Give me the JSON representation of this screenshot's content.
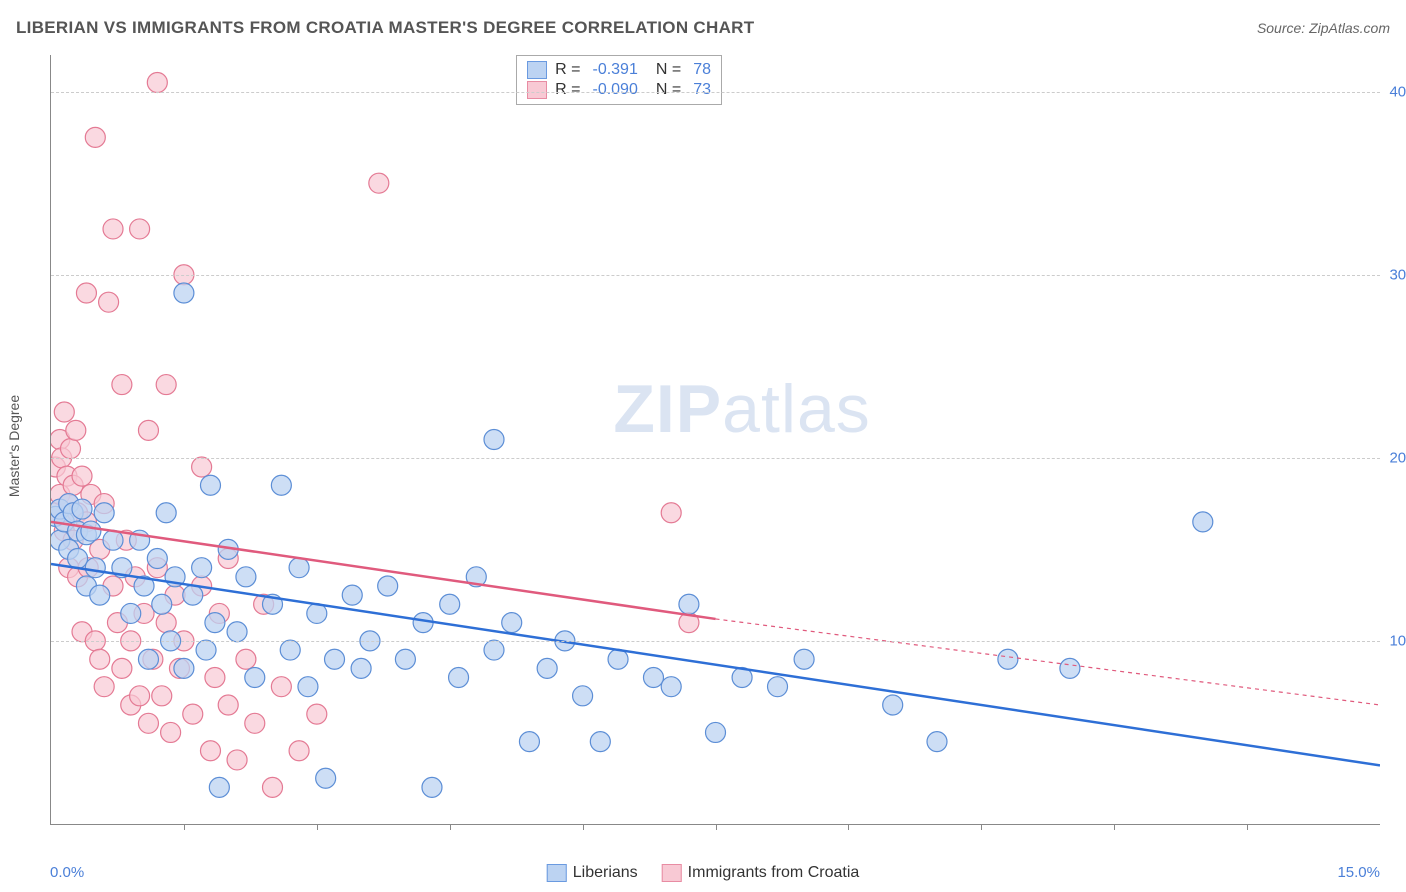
{
  "title": "LIBERIAN VS IMMIGRANTS FROM CROATIA MASTER'S DEGREE CORRELATION CHART",
  "source": "Source: ZipAtlas.com",
  "ylabel": "Master's Degree",
  "watermark_a": "ZIP",
  "watermark_b": "atlas",
  "chart": {
    "type": "scatter",
    "xlim": [
      0,
      15
    ],
    "ylim": [
      0,
      42
    ],
    "x_tick_step": 1.5,
    "y_gridlines": [
      10,
      20,
      30,
      40
    ],
    "y_tick_labels": [
      "10.0%",
      "20.0%",
      "30.0%",
      "40.0%"
    ],
    "x_left_label": "0.0%",
    "x_right_label": "15.0%",
    "background_color": "#ffffff",
    "grid_color": "#cccccc",
    "axis_color": "#888888",
    "label_color": "#4a7fd8",
    "series": [
      {
        "name": "Liberians",
        "swatch_fill": "#bcd3f2",
        "swatch_border": "#6a9ae0",
        "marker_fill": "#bcd3f2",
        "marker_stroke": "#5c8ed6",
        "marker_opacity": 0.75,
        "marker_radius": 10,
        "R": "-0.391",
        "N": "78",
        "trend": {
          "x1": 0,
          "y1": 14.2,
          "x2": 15,
          "y2": 3.2,
          "color": "#2e6fd6",
          "width": 2.5,
          "dash": "none",
          "extrap_dash": "none"
        },
        "points": [
          [
            0.05,
            16.8
          ],
          [
            0.1,
            17.2
          ],
          [
            0.1,
            15.5
          ],
          [
            0.15,
            16.5
          ],
          [
            0.2,
            17.5
          ],
          [
            0.2,
            15.0
          ],
          [
            0.25,
            17.0
          ],
          [
            0.3,
            16.0
          ],
          [
            0.3,
            14.5
          ],
          [
            0.35,
            17.2
          ],
          [
            0.4,
            15.8
          ],
          [
            0.4,
            13.0
          ],
          [
            0.45,
            16.0
          ],
          [
            0.5,
            14.0
          ],
          [
            0.55,
            12.5
          ],
          [
            0.6,
            17.0
          ],
          [
            0.7,
            15.5
          ],
          [
            0.8,
            14.0
          ],
          [
            0.9,
            11.5
          ],
          [
            1.0,
            15.5
          ],
          [
            1.05,
            13.0
          ],
          [
            1.1,
            9.0
          ],
          [
            1.2,
            14.5
          ],
          [
            1.25,
            12.0
          ],
          [
            1.3,
            17.0
          ],
          [
            1.35,
            10.0
          ],
          [
            1.4,
            13.5
          ],
          [
            1.5,
            8.5
          ],
          [
            1.5,
            29.0
          ],
          [
            1.6,
            12.5
          ],
          [
            1.7,
            14.0
          ],
          [
            1.75,
            9.5
          ],
          [
            1.8,
            18.5
          ],
          [
            1.85,
            11.0
          ],
          [
            1.9,
            2.0
          ],
          [
            2.0,
            15.0
          ],
          [
            2.1,
            10.5
          ],
          [
            2.2,
            13.5
          ],
          [
            2.3,
            8.0
          ],
          [
            2.5,
            12.0
          ],
          [
            2.6,
            18.5
          ],
          [
            2.7,
            9.5
          ],
          [
            2.8,
            14.0
          ],
          [
            2.9,
            7.5
          ],
          [
            3.0,
            11.5
          ],
          [
            3.1,
            2.5
          ],
          [
            3.2,
            9.0
          ],
          [
            3.4,
            12.5
          ],
          [
            3.5,
            8.5
          ],
          [
            3.6,
            10.0
          ],
          [
            3.8,
            13.0
          ],
          [
            4.0,
            9.0
          ],
          [
            4.2,
            11.0
          ],
          [
            4.3,
            2.0
          ],
          [
            4.5,
            12.0
          ],
          [
            4.6,
            8.0
          ],
          [
            4.8,
            13.5
          ],
          [
            5.0,
            9.5
          ],
          [
            5.0,
            21.0
          ],
          [
            5.2,
            11.0
          ],
          [
            5.4,
            4.5
          ],
          [
            5.6,
            8.5
          ],
          [
            5.8,
            10.0
          ],
          [
            6.0,
            7.0
          ],
          [
            6.2,
            4.5
          ],
          [
            6.4,
            9.0
          ],
          [
            6.8,
            8.0
          ],
          [
            7.0,
            7.5
          ],
          [
            7.2,
            12.0
          ],
          [
            7.5,
            5.0
          ],
          [
            7.8,
            8.0
          ],
          [
            8.2,
            7.5
          ],
          [
            8.5,
            9.0
          ],
          [
            9.5,
            6.5
          ],
          [
            10.0,
            4.5
          ],
          [
            10.8,
            9.0
          ],
          [
            11.5,
            8.5
          ],
          [
            13.0,
            16.5
          ]
        ]
      },
      {
        "name": "Immigrants from Croatia",
        "swatch_fill": "#f8c9d4",
        "swatch_border": "#e88ca3",
        "marker_fill": "#f8c9d4",
        "marker_stroke": "#e47a94",
        "marker_opacity": 0.7,
        "marker_radius": 10,
        "R": "-0.090",
        "N": "73",
        "trend": {
          "x1": 0,
          "y1": 16.5,
          "x2": 7.5,
          "y2": 11.2,
          "color": "#e05a7d",
          "width": 2.5,
          "dash": "none",
          "extrap_x2": 15,
          "extrap_y2": 6.5,
          "extrap_dash": "4,4"
        },
        "points": [
          [
            0.05,
            19.5
          ],
          [
            0.05,
            17.0
          ],
          [
            0.1,
            21.0
          ],
          [
            0.1,
            18.0
          ],
          [
            0.12,
            20.0
          ],
          [
            0.15,
            16.0
          ],
          [
            0.15,
            22.5
          ],
          [
            0.18,
            19.0
          ],
          [
            0.2,
            17.5
          ],
          [
            0.2,
            14.0
          ],
          [
            0.22,
            20.5
          ],
          [
            0.25,
            18.5
          ],
          [
            0.25,
            15.5
          ],
          [
            0.28,
            21.5
          ],
          [
            0.3,
            17.0
          ],
          [
            0.3,
            13.5
          ],
          [
            0.35,
            19.0
          ],
          [
            0.35,
            10.5
          ],
          [
            0.4,
            16.5
          ],
          [
            0.4,
            29.0
          ],
          [
            0.42,
            14.0
          ],
          [
            0.45,
            18.0
          ],
          [
            0.5,
            10.0
          ],
          [
            0.5,
            37.5
          ],
          [
            0.55,
            15.0
          ],
          [
            0.55,
            9.0
          ],
          [
            0.6,
            17.5
          ],
          [
            0.6,
            7.5
          ],
          [
            0.65,
            28.5
          ],
          [
            0.7,
            13.0
          ],
          [
            0.7,
            32.5
          ],
          [
            0.75,
            11.0
          ],
          [
            0.8,
            8.5
          ],
          [
            0.8,
            24.0
          ],
          [
            0.85,
            15.5
          ],
          [
            0.9,
            6.5
          ],
          [
            0.9,
            10.0
          ],
          [
            0.95,
            13.5
          ],
          [
            1.0,
            7.0
          ],
          [
            1.0,
            32.5
          ],
          [
            1.05,
            11.5
          ],
          [
            1.1,
            5.5
          ],
          [
            1.1,
            21.5
          ],
          [
            1.15,
            9.0
          ],
          [
            1.2,
            40.5
          ],
          [
            1.2,
            14.0
          ],
          [
            1.25,
            7.0
          ],
          [
            1.3,
            11.0
          ],
          [
            1.3,
            24.0
          ],
          [
            1.35,
            5.0
          ],
          [
            1.4,
            12.5
          ],
          [
            1.45,
            8.5
          ],
          [
            1.5,
            10.0
          ],
          [
            1.5,
            30.0
          ],
          [
            1.6,
            6.0
          ],
          [
            1.7,
            13.0
          ],
          [
            1.7,
            19.5
          ],
          [
            1.8,
            4.0
          ],
          [
            1.85,
            8.0
          ],
          [
            1.9,
            11.5
          ],
          [
            2.0,
            6.5
          ],
          [
            2.0,
            14.5
          ],
          [
            2.1,
            3.5
          ],
          [
            2.2,
            9.0
          ],
          [
            2.3,
            5.5
          ],
          [
            2.4,
            12.0
          ],
          [
            2.5,
            2.0
          ],
          [
            2.6,
            7.5
          ],
          [
            2.8,
            4.0
          ],
          [
            3.0,
            6.0
          ],
          [
            3.7,
            35.0
          ],
          [
            7.0,
            17.0
          ],
          [
            7.2,
            11.0
          ]
        ]
      }
    ]
  },
  "bottom_legend": [
    {
      "label": "Liberians",
      "fill": "#bcd3f2",
      "border": "#6a9ae0"
    },
    {
      "label": "Immigrants from Croatia",
      "fill": "#f8c9d4",
      "border": "#e88ca3"
    }
  ]
}
